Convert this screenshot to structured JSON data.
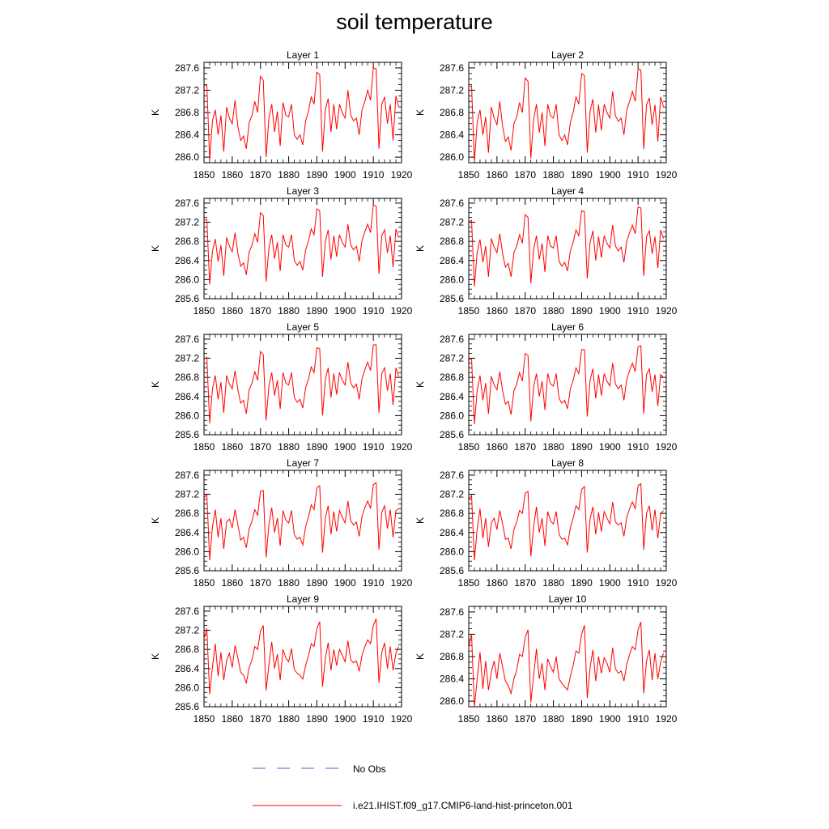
{
  "title": "soil temperature",
  "chart_data": {
    "type": "line",
    "title": "soil temperature",
    "x_range": [
      1850,
      1920
    ],
    "x_ticks": [
      1850,
      1860,
      1870,
      1880,
      1890,
      1900,
      1910,
      1920
    ],
    "ylabel": "K",
    "grid": false,
    "legend": {
      "placement": "bottom-center",
      "entries": [
        {
          "name": "No Obs",
          "color": "#5b5bd6",
          "style": "dashed"
        },
        {
          "name": "i.e21.IHIST.f09_g17.CMIP6-land-hist-princeton.001",
          "color": "#ff0000",
          "style": "solid"
        }
      ]
    },
    "years": [
      1850,
      1851,
      1852,
      1853,
      1854,
      1855,
      1856,
      1857,
      1858,
      1859,
      1860,
      1861,
      1862,
      1863,
      1864,
      1865,
      1866,
      1867,
      1868,
      1869,
      1870,
      1871,
      1872,
      1873,
      1874,
      1875,
      1876,
      1877,
      1878,
      1879,
      1880,
      1881,
      1882,
      1883,
      1884,
      1885,
      1886,
      1887,
      1888,
      1889,
      1890,
      1891,
      1892,
      1893,
      1894,
      1895,
      1896,
      1897,
      1898,
      1899,
      1900,
      1901,
      1902,
      1903,
      1904,
      1905,
      1906,
      1907,
      1908,
      1909,
      1910,
      1911,
      1912,
      1913,
      1914,
      1915,
      1916,
      1917,
      1918,
      1919
    ],
    "panels": [
      {
        "title": "Layer 1",
        "ylim": [
          285.9,
          287.7
        ],
        "yticks": [
          "286.0",
          "286.4",
          "286.8",
          "287.2",
          "287.6"
        ],
        "values": [
          287.28,
          287.3,
          285.95,
          286.65,
          286.85,
          286.4,
          286.75,
          286.1,
          286.9,
          286.7,
          286.6,
          287.02,
          286.55,
          286.3,
          286.38,
          286.15,
          286.62,
          286.75,
          287.0,
          286.8,
          287.45,
          287.38,
          286.0,
          286.7,
          286.95,
          286.45,
          286.82,
          286.2,
          286.98,
          286.75,
          286.72,
          286.95,
          286.4,
          286.32,
          286.4,
          286.22,
          286.65,
          286.82,
          287.08,
          286.95,
          287.52,
          287.48,
          286.1,
          286.85,
          287.05,
          286.45,
          286.95,
          286.5,
          286.95,
          286.8,
          286.7,
          287.2,
          286.75,
          286.65,
          286.7,
          286.4,
          286.85,
          287.0,
          287.2,
          287.02,
          287.6,
          287.58,
          286.15,
          286.95,
          287.08,
          286.6,
          286.95,
          286.3,
          287.1,
          286.9
        ]
      },
      {
        "title": "Layer 2",
        "ylim": [
          285.9,
          287.7
        ],
        "yticks": [
          "286.0",
          "286.4",
          "286.8",
          "287.2",
          "287.6"
        ],
        "values": [
          287.26,
          287.28,
          285.92,
          286.62,
          286.85,
          286.4,
          286.72,
          286.08,
          286.9,
          286.7,
          286.58,
          287.0,
          286.55,
          286.28,
          286.36,
          286.12,
          286.6,
          286.72,
          286.98,
          286.8,
          287.42,
          287.36,
          285.98,
          286.68,
          286.95,
          286.44,
          286.8,
          286.2,
          286.95,
          286.74,
          286.7,
          286.95,
          286.4,
          286.3,
          286.4,
          286.22,
          286.62,
          286.8,
          287.08,
          286.95,
          287.5,
          287.46,
          286.08,
          286.82,
          287.04,
          286.44,
          286.94,
          286.48,
          286.95,
          286.8,
          286.7,
          287.18,
          286.74,
          286.64,
          286.7,
          286.4,
          286.84,
          287.0,
          287.18,
          287.0,
          287.58,
          287.56,
          286.14,
          286.94,
          287.06,
          286.58,
          286.94,
          286.28,
          287.08,
          286.9
        ]
      },
      {
        "title": "Layer 3",
        "ylim": [
          285.6,
          287.7
        ],
        "yticks": [
          "285.6",
          "286.0",
          "286.4",
          "286.8",
          "287.2",
          "287.6"
        ],
        "values": [
          287.24,
          287.26,
          285.9,
          286.6,
          286.85,
          286.38,
          286.72,
          286.08,
          286.88,
          286.7,
          286.58,
          286.98,
          286.55,
          286.28,
          286.35,
          286.1,
          286.58,
          286.72,
          286.96,
          286.78,
          287.4,
          287.34,
          285.96,
          286.66,
          286.94,
          286.44,
          286.78,
          286.18,
          286.94,
          286.72,
          286.68,
          286.94,
          286.4,
          286.3,
          286.38,
          286.2,
          286.62,
          286.8,
          287.06,
          286.94,
          287.48,
          287.44,
          286.06,
          286.8,
          287.04,
          286.42,
          286.92,
          286.48,
          286.94,
          286.78,
          286.68,
          287.16,
          286.72,
          286.62,
          286.7,
          286.38,
          286.82,
          287.0,
          287.16,
          286.98,
          287.56,
          287.54,
          286.12,
          286.92,
          287.04,
          286.56,
          286.92,
          286.26,
          287.06,
          286.88
        ]
      },
      {
        "title": "Layer 4",
        "ylim": [
          285.6,
          287.7
        ],
        "yticks": [
          "285.6",
          "286.0",
          "286.4",
          "286.8",
          "287.2",
          "287.6"
        ],
        "values": [
          287.2,
          287.24,
          285.86,
          286.58,
          286.84,
          286.36,
          286.7,
          286.06,
          286.86,
          286.68,
          286.56,
          286.96,
          286.54,
          286.26,
          286.34,
          286.06,
          286.56,
          286.7,
          286.94,
          286.76,
          287.36,
          287.3,
          285.92,
          286.64,
          286.92,
          286.42,
          286.76,
          286.16,
          286.92,
          286.7,
          286.66,
          286.92,
          286.38,
          286.28,
          286.36,
          286.18,
          286.6,
          286.78,
          287.04,
          286.92,
          287.44,
          287.42,
          286.02,
          286.78,
          287.02,
          286.4,
          286.9,
          286.46,
          286.92,
          286.76,
          286.66,
          287.14,
          286.7,
          286.6,
          286.68,
          286.36,
          286.8,
          286.98,
          287.14,
          286.96,
          287.52,
          287.5,
          286.08,
          286.9,
          287.02,
          286.54,
          286.9,
          286.24,
          287.04,
          286.86
        ]
      },
      {
        "title": "Layer 5",
        "ylim": [
          285.6,
          287.7
        ],
        "yticks": [
          "285.6",
          "286.0",
          "286.4",
          "286.8",
          "287.2",
          "287.6"
        ],
        "values": [
          287.18,
          287.22,
          285.84,
          286.56,
          286.84,
          286.34,
          286.7,
          286.06,
          286.84,
          286.66,
          286.56,
          286.94,
          286.54,
          286.26,
          286.32,
          286.04,
          286.54,
          286.68,
          286.92,
          286.74,
          287.34,
          287.28,
          285.9,
          286.62,
          286.9,
          286.42,
          286.74,
          286.14,
          286.9,
          286.68,
          286.64,
          286.9,
          286.38,
          286.28,
          286.34,
          286.16,
          286.58,
          286.76,
          287.02,
          286.9,
          287.42,
          287.4,
          286.0,
          286.76,
          287.0,
          286.38,
          286.88,
          286.44,
          286.9,
          286.74,
          286.64,
          287.12,
          286.68,
          286.58,
          286.66,
          286.34,
          286.78,
          286.96,
          287.12,
          286.94,
          287.48,
          287.48,
          286.06,
          286.88,
          287.0,
          286.52,
          286.88,
          286.22,
          287.0,
          286.82
        ]
      },
      {
        "title": "Layer 6",
        "ylim": [
          285.6,
          287.7
        ],
        "yticks": [
          "285.6",
          "286.0",
          "286.4",
          "286.8",
          "287.2",
          "287.6"
        ],
        "values": [
          287.16,
          287.2,
          285.82,
          286.54,
          286.84,
          286.32,
          286.68,
          286.04,
          286.82,
          286.64,
          286.54,
          286.92,
          286.52,
          286.24,
          286.3,
          286.02,
          286.52,
          286.66,
          286.9,
          286.72,
          287.3,
          287.26,
          285.88,
          286.6,
          286.88,
          286.4,
          286.72,
          286.12,
          286.88,
          286.66,
          286.62,
          286.88,
          286.36,
          286.26,
          286.32,
          286.14,
          286.56,
          286.74,
          287.0,
          286.88,
          287.38,
          287.38,
          285.98,
          286.74,
          286.98,
          286.36,
          286.86,
          286.42,
          286.88,
          286.72,
          286.62,
          287.1,
          286.66,
          286.56,
          286.64,
          286.32,
          286.76,
          286.94,
          287.1,
          286.92,
          287.44,
          287.46,
          286.04,
          286.86,
          286.98,
          286.5,
          286.86,
          286.2,
          286.86,
          286.8
        ]
      },
      {
        "title": "Layer 7",
        "ylim": [
          285.6,
          287.7
        ],
        "yticks": [
          "285.6",
          "286.0",
          "286.4",
          "286.8",
          "287.2",
          "287.6"
        ],
        "values": [
          287.12,
          287.2,
          285.82,
          286.52,
          286.88,
          286.3,
          286.7,
          286.06,
          286.62,
          286.68,
          286.5,
          286.88,
          286.56,
          286.24,
          286.3,
          286.08,
          286.48,
          286.64,
          286.88,
          286.76,
          287.26,
          287.28,
          285.88,
          286.56,
          286.92,
          286.4,
          286.7,
          286.12,
          286.86,
          286.66,
          286.6,
          286.86,
          286.36,
          286.26,
          286.3,
          286.14,
          286.52,
          286.72,
          286.98,
          286.88,
          287.34,
          287.38,
          285.98,
          286.7,
          286.96,
          286.36,
          286.84,
          286.42,
          286.86,
          286.72,
          286.6,
          287.06,
          286.64,
          286.56,
          286.62,
          286.32,
          286.74,
          286.92,
          287.06,
          286.9,
          287.4,
          287.44,
          286.04,
          286.82,
          286.96,
          286.48,
          286.88,
          286.3,
          286.86,
          286.9
        ]
      },
      {
        "title": "Layer 8",
        "ylim": [
          285.6,
          287.7
        ],
        "yticks": [
          "285.6",
          "286.0",
          "286.4",
          "286.8",
          "287.2",
          "287.6"
        ],
        "values": [
          287.08,
          287.18,
          285.82,
          286.48,
          286.9,
          286.28,
          286.7,
          286.1,
          286.6,
          286.7,
          286.46,
          286.86,
          286.58,
          286.26,
          286.28,
          286.06,
          286.46,
          286.62,
          286.86,
          286.8,
          287.22,
          287.26,
          285.9,
          286.52,
          286.94,
          286.4,
          286.7,
          286.12,
          286.84,
          286.64,
          286.58,
          286.84,
          286.36,
          286.26,
          286.28,
          286.14,
          286.5,
          286.7,
          286.96,
          286.88,
          287.3,
          287.36,
          285.98,
          286.68,
          286.94,
          286.36,
          286.82,
          286.42,
          286.84,
          286.7,
          286.58,
          287.04,
          286.62,
          286.56,
          286.6,
          286.32,
          286.72,
          286.9,
          287.04,
          286.9,
          287.38,
          287.42,
          286.04,
          286.8,
          286.96,
          286.44,
          286.88,
          286.28,
          286.78,
          286.86
        ]
      },
      {
        "title": "Layer 9",
        "ylim": [
          285.6,
          287.7
        ],
        "yticks": [
          "285.6",
          "286.0",
          "286.4",
          "286.8",
          "287.2",
          "287.6"
        ],
        "values": [
          287.02,
          287.24,
          285.86,
          286.44,
          286.92,
          286.24,
          286.74,
          286.16,
          286.56,
          286.72,
          286.42,
          286.88,
          286.62,
          286.32,
          286.26,
          286.1,
          286.42,
          286.58,
          286.86,
          286.8,
          287.18,
          287.3,
          285.94,
          286.48,
          286.96,
          286.4,
          286.7,
          286.16,
          286.8,
          286.62,
          286.54,
          286.82,
          286.38,
          286.3,
          286.26,
          286.18,
          286.46,
          286.66,
          286.92,
          286.86,
          287.24,
          287.38,
          286.02,
          286.62,
          286.94,
          286.36,
          286.8,
          286.46,
          286.8,
          286.68,
          286.54,
          286.98,
          286.58,
          286.52,
          286.56,
          286.34,
          286.68,
          286.86,
          287.0,
          286.92,
          287.3,
          287.44,
          286.1,
          286.74,
          286.94,
          286.4,
          286.86,
          286.36,
          286.72,
          286.86
        ]
      },
      {
        "title": "Layer 10",
        "ylim": [
          285.9,
          287.7
        ],
        "yticks": [
          "286.0",
          "286.4",
          "286.8",
          "287.2",
          "287.6"
        ],
        "values": [
          286.96,
          287.2,
          285.9,
          286.4,
          286.88,
          286.22,
          286.72,
          286.2,
          286.52,
          286.72,
          286.4,
          286.86,
          286.62,
          286.36,
          286.28,
          286.14,
          286.4,
          286.56,
          286.84,
          286.8,
          287.14,
          287.28,
          285.98,
          286.46,
          286.94,
          286.4,
          286.68,
          286.2,
          286.76,
          286.62,
          286.52,
          286.8,
          286.4,
          286.32,
          286.26,
          286.2,
          286.44,
          286.64,
          286.9,
          286.86,
          287.2,
          287.36,
          286.06,
          286.6,
          286.92,
          286.36,
          286.8,
          286.5,
          286.78,
          286.68,
          286.52,
          286.96,
          286.58,
          286.5,
          286.54,
          286.36,
          286.66,
          286.84,
          286.98,
          286.92,
          287.28,
          287.42,
          286.14,
          286.72,
          286.92,
          286.38,
          286.86,
          286.4,
          286.7,
          286.86
        ]
      }
    ]
  }
}
